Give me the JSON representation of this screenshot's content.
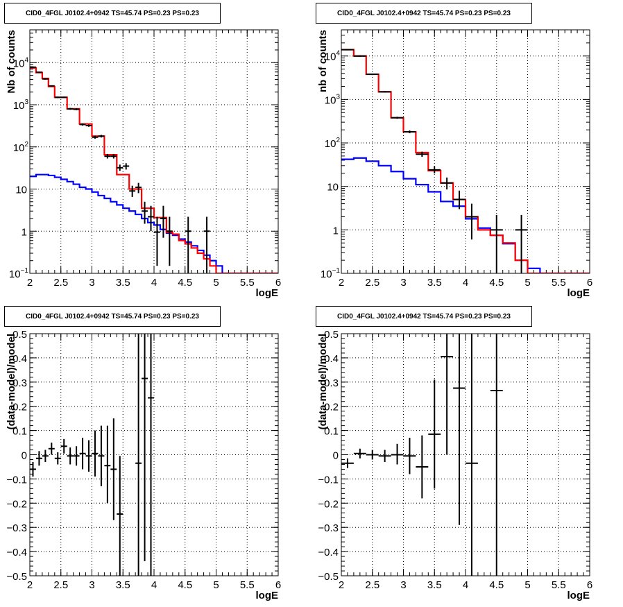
{
  "window_title": "",
  "colors": {
    "data": "#000000",
    "total_model": "#ff0000",
    "source_model": "#0000ff",
    "grid": "#000000"
  },
  "panels": [
    {
      "title": "CID0_4FGL J0102.4+0942 TS=45.74 PS=0.23 PS=0.23"
    },
    {
      "title": "CID0_4FGL J0102.4+0942 TS=45.74 PS=0.23 PS=0.23"
    },
    {
      "title": "CID0_4FGL J0102.4+0942 TS=45.74 PS=0.23 PS=0.23"
    },
    {
      "title": "CID0_4FGL J0102.4+0942 TS=45.74 PS=0.23 PS=0.23"
    }
  ],
  "chart_data": [
    {
      "type": "line",
      "title": "CID0_4FGL J0102.4+0942 TS=45.74 PS=0.23 PS=0.23",
      "xlabel": "logE",
      "ylabel": "Nb of counts",
      "xlim": [
        2,
        6
      ],
      "ylim": [
        0.1,
        60000
      ],
      "yscale": "log",
      "grid": true,
      "xticks": [
        "2",
        "2.5",
        "3",
        "3.5",
        "4",
        "4.5",
        "5",
        "5.5",
        "6"
      ],
      "yticks": [
        {
          "v": 0.1,
          "label": "10",
          "sup": "−1"
        },
        {
          "v": 1,
          "label": "1",
          "sup": ""
        },
        {
          "v": 10,
          "label": "10",
          "sup": ""
        },
        {
          "v": 100,
          "label": "10",
          "sup": "2"
        },
        {
          "v": 1000,
          "label": "10",
          "sup": "3"
        },
        {
          "v": 10000,
          "label": "10",
          "sup": "4"
        }
      ],
      "bin_edges": [
        2.0,
        2.1,
        2.2,
        2.3,
        2.4,
        2.5,
        2.6,
        2.7,
        2.8,
        2.9,
        3.0,
        3.1,
        3.2,
        3.3,
        3.4,
        3.5,
        3.6,
        3.7,
        3.8,
        3.9,
        4.0,
        4.1,
        4.2,
        4.3,
        4.4,
        4.5,
        4.6,
        4.7,
        4.8,
        4.9,
        5.0,
        5.1,
        5.2,
        5.3,
        5.4,
        5.5,
        5.6,
        5.7,
        5.8,
        5.9,
        6.0
      ],
      "series": [
        {
          "values": [
            7500,
            5800,
            4200,
            2700,
            1500,
            1500,
            800,
            800,
            350,
            350,
            180,
            180,
            65,
            65,
            22,
            22,
            10,
            10,
            3.5,
            3.5,
            2.1,
            2.1,
            0.95,
            0.85,
            0.6,
            0.5,
            0.4,
            0.3,
            0.22,
            0.15,
            0.1,
            0.1,
            0.1,
            0.1,
            0.1,
            0.1,
            0.1,
            0.1,
            0.1,
            0.1
          ]
        },
        {
          "values": [
            20,
            22,
            22,
            21,
            19,
            17,
            15,
            13,
            11,
            10,
            8.5,
            7,
            6,
            5,
            4.2,
            3.5,
            3,
            2.5,
            2,
            1.6,
            1.4,
            1.1,
            0.9,
            0.8,
            0.65,
            0.55,
            0.45,
            0.35,
            0.27,
            0.2,
            0.15,
            0.1,
            0.1,
            0.1,
            0.1,
            0.1,
            0.1,
            0.1,
            0.1,
            0.1
          ]
        }
      ],
      "points": [
        {
          "x": 2.05,
          "y": 7800,
          "lo": 7500,
          "hi": 8100
        },
        {
          "x": 2.15,
          "y": 5900,
          "lo": 5700,
          "hi": 6100
        },
        {
          "x": 2.25,
          "y": 4100,
          "lo": 3950,
          "hi": 4250
        },
        {
          "x": 2.35,
          "y": 2800,
          "lo": 2700,
          "hi": 2900
        },
        {
          "x": 2.45,
          "y": 1500,
          "lo": 1440,
          "hi": 1560
        },
        {
          "x": 2.55,
          "y": 1500,
          "lo": 1440,
          "hi": 1560
        },
        {
          "x": 2.65,
          "y": 800,
          "lo": 760,
          "hi": 840
        },
        {
          "x": 2.75,
          "y": 780,
          "lo": 740,
          "hi": 820
        },
        {
          "x": 2.85,
          "y": 340,
          "lo": 320,
          "hi": 360
        },
        {
          "x": 2.95,
          "y": 320,
          "lo": 300,
          "hi": 340
        },
        {
          "x": 3.05,
          "y": 170,
          "lo": 157,
          "hi": 183
        },
        {
          "x": 3.15,
          "y": 180,
          "lo": 167,
          "hi": 193
        },
        {
          "x": 3.25,
          "y": 60,
          "lo": 53,
          "hi": 68
        },
        {
          "x": 3.35,
          "y": 60,
          "lo": 53,
          "hi": 68
        },
        {
          "x": 3.45,
          "y": 32,
          "lo": 27,
          "hi": 38
        },
        {
          "x": 3.55,
          "y": 35,
          "lo": 29,
          "hi": 41
        },
        {
          "x": 3.65,
          "y": 9,
          "lo": 6.5,
          "hi": 12
        },
        {
          "x": 3.75,
          "y": 11,
          "lo": 8,
          "hi": 14
        },
        {
          "x": 3.85,
          "y": 3,
          "lo": 1.5,
          "hi": 5
        },
        {
          "x": 3.95,
          "y": 2.2,
          "lo": 1,
          "hi": 4
        },
        {
          "x": 4.05,
          "y": 0.95,
          "lo": 0.15,
          "hi": 2.2
        },
        {
          "x": 4.15,
          "y": 2,
          "lo": 0.7,
          "hi": 4
        },
        {
          "x": 4.25,
          "y": 1,
          "lo": 0.15,
          "hi": 2.2
        },
        {
          "x": 4.55,
          "y": 1,
          "lo": 0.1,
          "hi": 2.2
        },
        {
          "x": 4.85,
          "y": 1,
          "lo": 0.1,
          "hi": 2.2
        }
      ]
    },
    {
      "type": "line",
      "title": "CID0_4FGL J0102.4+0942 TS=45.74 PS=0.23 PS=0.23",
      "xlabel": "logE",
      "ylabel": "nb of counts",
      "xlim": [
        2,
        6
      ],
      "ylim": [
        0.1,
        40000
      ],
      "yscale": "log",
      "grid": true,
      "xticks": [
        "2",
        "2.5",
        "3",
        "3.5",
        "4",
        "4.5",
        "5",
        "5.5",
        "6"
      ],
      "yticks": [
        {
          "v": 0.1,
          "label": "10",
          "sup": "−1"
        },
        {
          "v": 1,
          "label": "1",
          "sup": ""
        },
        {
          "v": 10,
          "label": "10",
          "sup": ""
        },
        {
          "v": 100,
          "label": "10",
          "sup": "2"
        },
        {
          "v": 1000,
          "label": "10",
          "sup": "3"
        },
        {
          "v": 10000,
          "label": "10",
          "sup": "4"
        }
      ],
      "bin_edges": [
        2.0,
        2.2,
        2.4,
        2.6,
        2.8,
        3.0,
        3.2,
        3.4,
        3.6,
        3.8,
        4.0,
        4.2,
        4.4,
        4.6,
        4.8,
        5.0,
        5.2,
        5.4,
        5.6,
        5.8,
        6.0
      ],
      "series": [
        {
          "values": [
            14000,
            10000,
            3800,
            1500,
            380,
            180,
            60,
            23,
            12,
            5,
            2,
            1,
            0.75,
            0.5,
            0.2,
            0.1,
            0.1,
            0.1,
            0.1,
            0.1
          ]
        },
        {
          "values": [
            42,
            45,
            38,
            30,
            22,
            15,
            11,
            7.5,
            4.5,
            3.5,
            1.8,
            1.1,
            0.75,
            0.48,
            0.2,
            0.13,
            0.1,
            0.1,
            0.1,
            0.1
          ]
        }
      ],
      "points": [
        {
          "x": 2.1,
          "y": 14000,
          "lo": 13500,
          "hi": 14500
        },
        {
          "x": 2.3,
          "y": 10000,
          "lo": 9600,
          "hi": 10400
        },
        {
          "x": 2.5,
          "y": 3800,
          "lo": 3650,
          "hi": 3950
        },
        {
          "x": 2.7,
          "y": 1500,
          "lo": 1440,
          "hi": 1560
        },
        {
          "x": 2.9,
          "y": 380,
          "lo": 360,
          "hi": 400
        },
        {
          "x": 3.1,
          "y": 180,
          "lo": 167,
          "hi": 193
        },
        {
          "x": 3.3,
          "y": 55,
          "lo": 48,
          "hi": 63
        },
        {
          "x": 3.5,
          "y": 24,
          "lo": 20,
          "hi": 29
        },
        {
          "x": 3.7,
          "y": 12,
          "lo": 8.5,
          "hi": 16
        },
        {
          "x": 3.9,
          "y": 5,
          "lo": 3,
          "hi": 8
        },
        {
          "x": 4.1,
          "y": 2,
          "lo": 0.6,
          "hi": 4
        },
        {
          "x": 4.5,
          "y": 1,
          "lo": 0.1,
          "hi": 2.2
        },
        {
          "x": 4.9,
          "y": 1,
          "lo": 0.1,
          "hi": 2.2
        }
      ]
    },
    {
      "type": "scatter",
      "title": "CID0_4FGL J0102.4+0942 TS=45.74 PS=0.23 PS=0.23",
      "xlabel": "logE",
      "ylabel": "(data-model)/model",
      "xlim": [
        2,
        6
      ],
      "ylim": [
        -0.5,
        0.5
      ],
      "yscale": "linear",
      "grid": true,
      "xticks": [
        "2",
        "2.5",
        "3",
        "3.5",
        "4",
        "4.5",
        "5",
        "5.5",
        "6"
      ],
      "yticks": [
        "−0.5",
        "−0.4",
        "−0.3",
        "−0.2",
        "−0.1",
        "0",
        "0.1",
        "0.2",
        "0.3",
        "0.4",
        "0.5"
      ],
      "points": [
        {
          "x": 2.05,
          "y": -0.06,
          "lo": -0.09,
          "hi": -0.03
        },
        {
          "x": 2.15,
          "y": -0.015,
          "lo": -0.045,
          "hi": 0.015
        },
        {
          "x": 2.25,
          "y": -0.005,
          "lo": -0.03,
          "hi": 0.02
        },
        {
          "x": 2.35,
          "y": 0.025,
          "lo": 0.0,
          "hi": 0.05
        },
        {
          "x": 2.45,
          "y": -0.015,
          "lo": -0.04,
          "hi": 0.01
        },
        {
          "x": 2.55,
          "y": 0.035,
          "lo": 0.005,
          "hi": 0.065
        },
        {
          "x": 2.65,
          "y": -0.005,
          "lo": -0.04,
          "hi": 0.03
        },
        {
          "x": 2.75,
          "y": -0.005,
          "lo": -0.045,
          "hi": 0.035
        },
        {
          "x": 2.85,
          "y": 0.005,
          "lo": -0.06,
          "hi": 0.07
        },
        {
          "x": 2.95,
          "y": -0.005,
          "lo": -0.07,
          "hi": 0.06
        },
        {
          "x": 3.05,
          "y": 0.005,
          "lo": -0.09,
          "hi": 0.1
        },
        {
          "x": 3.15,
          "y": -0.005,
          "lo": -0.13,
          "hi": 0.12
        },
        {
          "x": 3.25,
          "y": -0.045,
          "lo": -0.2,
          "hi": 0.12
        },
        {
          "x": 3.35,
          "y": -0.06,
          "lo": -0.27,
          "hi": 0.15
        },
        {
          "x": 3.45,
          "y": -0.245,
          "lo": -0.5,
          "hi": -0.005
        },
        {
          "x": 3.75,
          "y": -0.035,
          "lo": -0.5,
          "hi": 0.5
        },
        {
          "x": 3.85,
          "y": 0.315,
          "lo": -0.44,
          "hi": 0.5
        },
        {
          "x": 3.95,
          "y": 0.235,
          "lo": -0.5,
          "hi": 0.5
        }
      ]
    },
    {
      "type": "scatter",
      "title": "CID0_4FGL J0102.4+0942 TS=45.74 PS=0.23 PS=0.23",
      "xlabel": "logE",
      "ylabel": "(data-model)/model",
      "xlim": [
        2,
        6
      ],
      "ylim": [
        -0.5,
        0.5
      ],
      "yscale": "linear",
      "grid": true,
      "xticks": [
        "2",
        "2.5",
        "3",
        "3.5",
        "4",
        "4.5",
        "5",
        "5.5",
        "6"
      ],
      "yticks": [
        "−0.5",
        "−0.4",
        "−0.3",
        "−0.2",
        "−0.1",
        "0",
        "0.1",
        "0.2",
        "0.3",
        "0.4",
        "0.5"
      ],
      "points": [
        {
          "x": 2.1,
          "y": -0.035,
          "lo": -0.055,
          "hi": -0.015
        },
        {
          "x": 2.3,
          "y": 0.005,
          "lo": -0.015,
          "hi": 0.025
        },
        {
          "x": 2.5,
          "y": 0.0,
          "lo": -0.02,
          "hi": 0.02
        },
        {
          "x": 2.7,
          "y": -0.005,
          "lo": -0.03,
          "hi": 0.02
        },
        {
          "x": 2.9,
          "y": 0.0,
          "lo": -0.04,
          "hi": 0.045
        },
        {
          "x": 3.1,
          "y": -0.005,
          "lo": -0.08,
          "hi": 0.07
        },
        {
          "x": 3.3,
          "y": -0.05,
          "lo": -0.18,
          "hi": 0.08
        },
        {
          "x": 3.5,
          "y": 0.085,
          "lo": -0.14,
          "hi": 0.31
        },
        {
          "x": 3.7,
          "y": 0.405,
          "lo": 0.0,
          "hi": 0.5
        },
        {
          "x": 3.9,
          "y": 0.275,
          "lo": -0.29,
          "hi": 0.5
        },
        {
          "x": 4.1,
          "y": -0.035,
          "lo": -0.5,
          "hi": 0.5
        },
        {
          "x": 4.5,
          "y": 0.265,
          "lo": -0.5,
          "hi": 0.5
        }
      ]
    }
  ]
}
